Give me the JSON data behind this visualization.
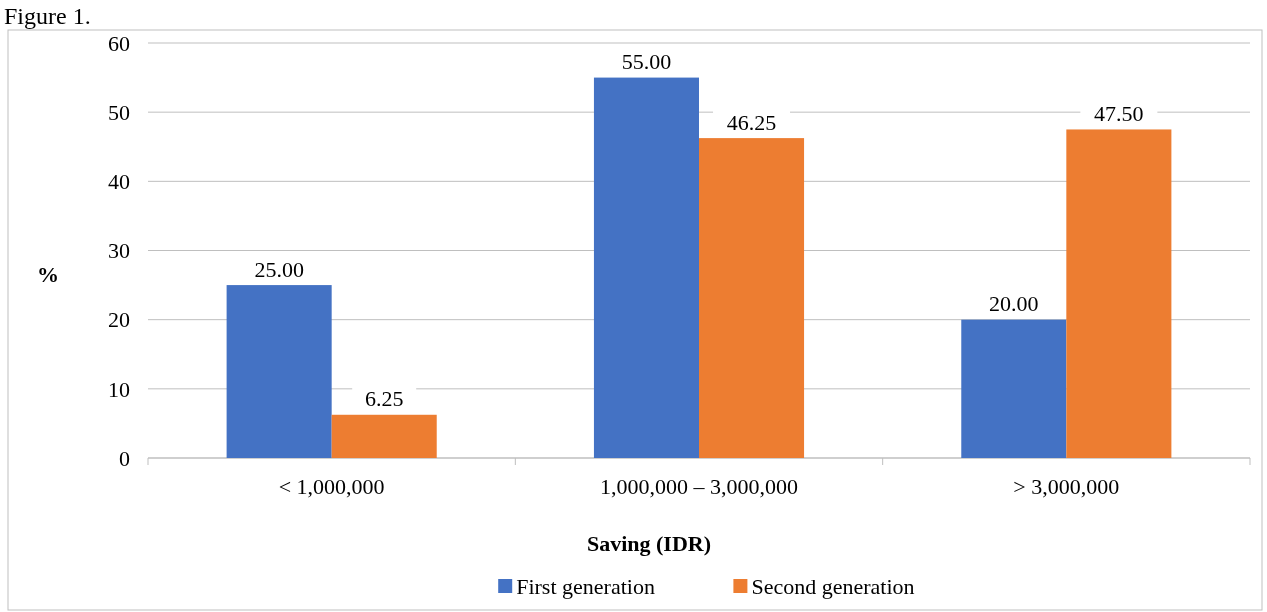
{
  "chart_data": {
    "type": "bar",
    "title": "Figure 1.",
    "xlabel": "Saving (IDR)",
    "ylabel": "%",
    "categories": [
      "< 1,000,000",
      "1,000,000 – 3,000,000",
      "> 3,000,000"
    ],
    "series": [
      {
        "name": "First generation",
        "color": "#4472c4",
        "values": [
          25,
          55,
          20
        ],
        "value_labels": [
          "25.00",
          "55.00",
          "20.00"
        ]
      },
      {
        "name": "Second generation",
        "color": "#ed7d31",
        "values": [
          6.25,
          46.25,
          47.5
        ],
        "value_labels": [
          "6.25",
          "46.25",
          "47.50"
        ]
      }
    ],
    "ylim": [
      0,
      60
    ],
    "yticks": [
      0,
      10,
      20,
      30,
      40,
      50,
      60
    ],
    "grid": "y",
    "legend": "bottom"
  }
}
